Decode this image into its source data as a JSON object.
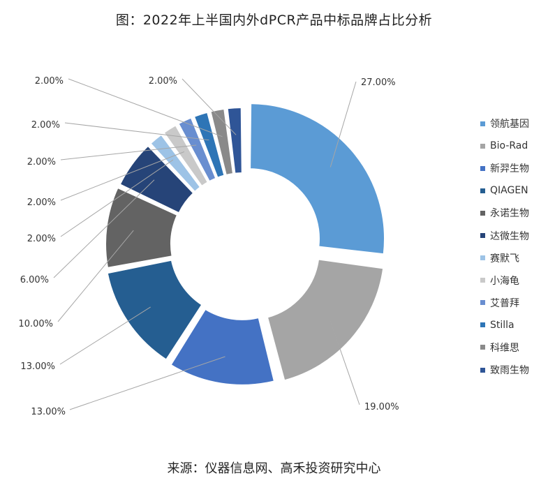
{
  "title": "图：2022年上半国内外dPCR产品中标品牌占比分析",
  "source": "来源：仪器信息网、高禾投资研究中心",
  "chart_data": {
    "type": "pie",
    "donut": true,
    "legend_position": "right",
    "slices": [
      {
        "name": "领航基因",
        "value": 27.0,
        "label": "27.00%",
        "color": "#5b9bd5"
      },
      {
        "name": "Bio-Rad",
        "value": 19.0,
        "label": "19.00%",
        "color": "#a5a5a5"
      },
      {
        "name": "新羿生物",
        "value": 13.0,
        "label": "13.00%",
        "color": "#4472c4"
      },
      {
        "name": "QIAGEN",
        "value": 13.0,
        "label": "13.00%",
        "color": "#255e91"
      },
      {
        "name": "永诺生物",
        "value": 10.0,
        "label": "10.00%",
        "color": "#636363"
      },
      {
        "name": "达微生物",
        "value": 6.0,
        "label": "6.00%",
        "color": "#264478"
      },
      {
        "name": "赛默飞",
        "value": 2.0,
        "label": "2.00%",
        "color": "#9dc3e6"
      },
      {
        "name": "小海龟",
        "value": 2.0,
        "label": "2.00%",
        "color": "#c9c9c9"
      },
      {
        "name": "艾普拜",
        "value": 2.0,
        "label": "2.00%",
        "color": "#698ed0"
      },
      {
        "name": "Stilla",
        "value": 2.0,
        "label": "2.00%",
        "color": "#2e75b6"
      },
      {
        "name": "科维思",
        "value": 2.0,
        "label": "2.00%",
        "color": "#8a8a8a"
      },
      {
        "name": "致雨生物",
        "value": 2.0,
        "label": "2.00%",
        "color": "#2f5597"
      }
    ]
  }
}
